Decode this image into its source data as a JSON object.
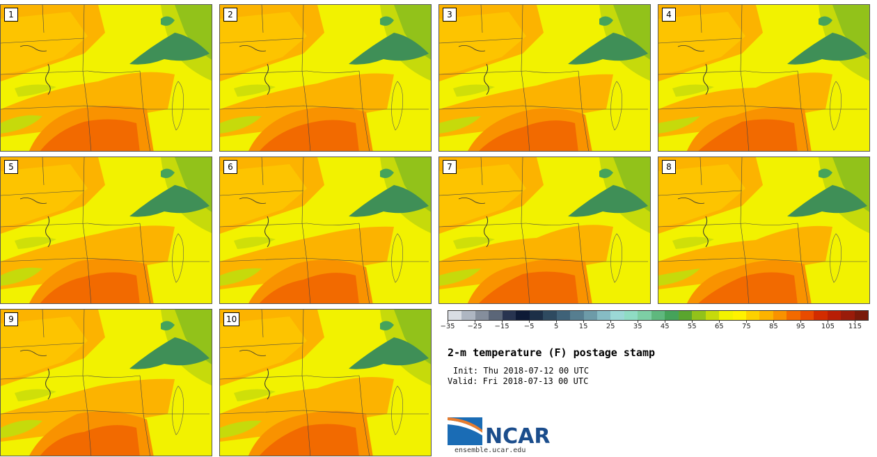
{
  "panels": [
    {
      "label": "1",
      "variant": 0
    },
    {
      "label": "2",
      "variant": 1
    },
    {
      "label": "3",
      "variant": 2
    },
    {
      "label": "4",
      "variant": 3
    },
    {
      "label": "5",
      "variant": 4
    },
    {
      "label": "6",
      "variant": 5
    },
    {
      "label": "7",
      "variant": 6
    },
    {
      "label": "8",
      "variant": 7
    },
    {
      "label": "9",
      "variant": 8
    },
    {
      "label": "10",
      "variant": 9
    }
  ],
  "colorbar": {
    "colors": [
      "#d9dde3",
      "#aeb6c2",
      "#858e9c",
      "#5b6678",
      "#283450",
      "#0e1a36",
      "#1c2f47",
      "#2e4a60",
      "#3f6278",
      "#567e90",
      "#6d9ba8",
      "#86bcc4",
      "#9bd8d6",
      "#8fdcc4",
      "#7dcfa5",
      "#5fb87e",
      "#45a35a",
      "#5aa52e",
      "#92c21a",
      "#c6da0b",
      "#f2f200",
      "#fff200",
      "#fdd100",
      "#fcb300",
      "#f99200",
      "#f26a00",
      "#e94b00",
      "#d22c00",
      "#b81e05",
      "#9a1c0a",
      "#7a1a0a"
    ],
    "tick_labels": [
      "−35",
      "−25",
      "−15",
      "−5",
      "5",
      "15",
      "25",
      "35",
      "45",
      "55",
      "65",
      "75",
      "85",
      "95",
      "105",
      "115"
    ],
    "tick_values": [
      -35,
      -25,
      -15,
      -5,
      5,
      15,
      25,
      35,
      45,
      55,
      65,
      75,
      85,
      95,
      105,
      115
    ],
    "min": -35,
    "max": 120
  },
  "title": "2-m temperature (F) postage stamp",
  "init": "Init: Thu 2018-07-12 00 UTC",
  "valid": "Valid: Fri 2018-07-13 00 UTC",
  "logo": {
    "text": "NCAR",
    "url": "ensemble.ucar.edu",
    "brand_color": "#1b4d8c",
    "accent_color": "#e87d2e"
  },
  "map_colors": {
    "hot": "#f26a00",
    "warm": "#f99200",
    "mild": "#fcb300",
    "yellow": "#fdd100",
    "bright": "#f2f200",
    "lime": "#c6da0b",
    "green": "#92c21a",
    "dkgreen": "#45a35a",
    "lake": "#3f8f57"
  }
}
